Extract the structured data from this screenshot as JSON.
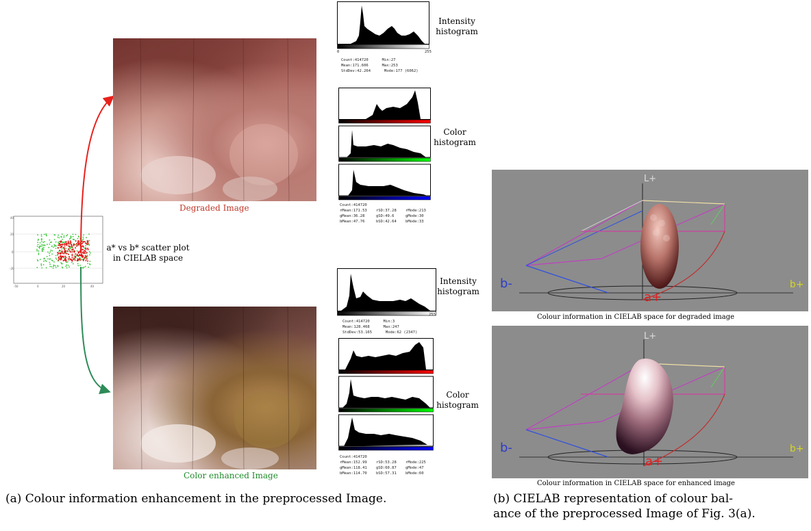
{
  "panel_a": {
    "degraded_caption": "Degraded Image",
    "enhanced_caption": "Color enhanced Image",
    "scatter_caption_line1": "a* vs b* scatter plot",
    "scatter_caption_line2": "in CIELAB space",
    "top": {
      "intensity_label_1": "Intensity",
      "intensity_label_2": "histogram",
      "color_label_1": "Color",
      "color_label_2": "histogram",
      "hist_min": "0",
      "hist_max": "255",
      "intensity_stats": "Count:414720      Min:27\nMean:171.606      Max:253\nStdDev:42.264      Mode:177 (6062)",
      "color_stats": "Count:414720\nrMean:171.53    rSD:37.28    rMode:213\ngMean:36.28     gSD:49.6     gMode:30\nbMean:47.76     bSD:42.64    bMode:33"
    },
    "bottom": {
      "intensity_label_1": "Intensity",
      "intensity_label_2": "histogram",
      "color_label_1": "Color",
      "color_label_2": "histogram",
      "hist_min": "0",
      "hist_max": "255",
      "intensity_stats": "Count:414720      Min:3\nMean:128.468      Max:247\nStdDev:53.165      Mode:62 (2347)",
      "color_stats": "Count:414720\nrMean:152.99    rSD:53.28    rMode:225\ngMean:118.41    gSD:60.87    gMode:47\nbMean:114.70    bSD:57.31    bMode:60"
    }
  },
  "panel_b": {
    "degraded_caption": "Colour information in CIELAB space for degraded image",
    "enhanced_caption": "Colour information in CIELAB space for enhanced  image",
    "axis_L": "L+",
    "axis_b_minus": "b-",
    "axis_b_plus": "b+",
    "axis_a_plus": "a+"
  },
  "subcaption_a": "(a) Colour information enhancement in the preprocessed Image.",
  "subcaption_b_line1": "(b) CIELAB representation of colour bal-",
  "subcaption_b_line2": "ance of the preprocessed Image of Fig. 3(a).",
  "colors": {
    "red_arrow": "#e8211c",
    "green_arrow": "#2e8b57",
    "degraded_caption_color": "#c0392b",
    "enhanced_caption_color": "#1e8a2a",
    "panel_bg": "#8c8c8c"
  }
}
